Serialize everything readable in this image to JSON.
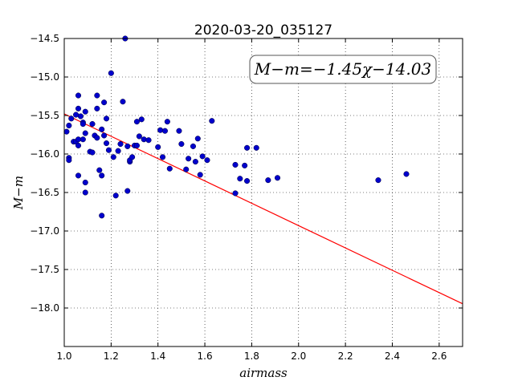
{
  "chart_data": {
    "type": "scatter",
    "title": "2020-03-20_035127",
    "xlabel": "airmass",
    "ylabel": "M−m",
    "xlim": [
      1.0,
      2.7
    ],
    "ylim": [
      -14.5,
      -18.5
    ],
    "y_inverted": true,
    "grid": true,
    "x_ticks": [
      "1.0",
      "1.2",
      "1.4",
      "1.6",
      "1.8",
      "2.0",
      "2.2",
      "2.4",
      "2.6"
    ],
    "y_ticks": [
      "−14.5",
      "−15.0",
      "−15.5",
      "−16.0",
      "−16.5",
      "−17.0",
      "−17.5",
      "−18.0"
    ],
    "annotation": "M−m=−1.45χ−14.03",
    "fit": {
      "slope": -1.45,
      "intercept": -14.03,
      "color": "#ff0000",
      "x_range": [
        1.0,
        2.7
      ]
    },
    "marker_color": "#0000cc",
    "points": [
      [
        1.01,
        -15.71
      ],
      [
        1.02,
        -15.63
      ],
      [
        1.02,
        -16.05
      ],
      [
        1.02,
        -16.08
      ],
      [
        1.03,
        -15.54
      ],
      [
        1.04,
        -15.84
      ],
      [
        1.05,
        -15.49
      ],
      [
        1.05,
        -15.84
      ],
      [
        1.06,
        -15.41
      ],
      [
        1.06,
        -16.28
      ],
      [
        1.06,
        -15.81
      ],
      [
        1.06,
        -15.89
      ],
      [
        1.06,
        -15.24
      ],
      [
        1.07,
        -15.51
      ],
      [
        1.08,
        -15.59
      ],
      [
        1.08,
        -15.81
      ],
      [
        1.08,
        -15.61
      ],
      [
        1.09,
        -16.37
      ],
      [
        1.09,
        -16.5
      ],
      [
        1.09,
        -15.45
      ],
      [
        1.09,
        -15.73
      ],
      [
        1.11,
        -15.97
      ],
      [
        1.12,
        -15.61
      ],
      [
        1.12,
        -15.98
      ],
      [
        1.13,
        -15.76
      ],
      [
        1.14,
        -15.41
      ],
      [
        1.14,
        -15.79
      ],
      [
        1.14,
        -15.24
      ],
      [
        1.15,
        -16.21
      ],
      [
        1.16,
        -16.8
      ],
      [
        1.16,
        -15.68
      ],
      [
        1.17,
        -15.33
      ],
      [
        1.17,
        -15.76
      ],
      [
        1.16,
        -16.28
      ],
      [
        1.18,
        -15.54
      ],
      [
        1.18,
        -15.86
      ],
      [
        1.19,
        -15.95
      ],
      [
        1.2,
        -14.95
      ],
      [
        1.21,
        -16.04
      ],
      [
        1.22,
        -16.54
      ],
      [
        1.23,
        -15.96
      ],
      [
        1.24,
        -15.87
      ],
      [
        1.25,
        -15.32
      ],
      [
        1.26,
        -14.5
      ],
      [
        1.27,
        -15.9
      ],
      [
        1.27,
        -16.48
      ],
      [
        1.28,
        -16.1
      ],
      [
        1.28,
        -16.08
      ],
      [
        1.29,
        -16.04
      ],
      [
        1.3,
        -15.89
      ],
      [
        1.31,
        -15.58
      ],
      [
        1.31,
        -15.89
      ],
      [
        1.32,
        -15.77
      ],
      [
        1.33,
        -15.55
      ],
      [
        1.34,
        -15.81
      ],
      [
        1.36,
        -15.82
      ],
      [
        1.4,
        -15.91
      ],
      [
        1.41,
        -15.69
      ],
      [
        1.42,
        -16.04
      ],
      [
        1.43,
        -15.7
      ],
      [
        1.44,
        -15.58
      ],
      [
        1.45,
        -16.19
      ],
      [
        1.49,
        -15.7
      ],
      [
        1.5,
        -15.87
      ],
      [
        1.52,
        -16.2
      ],
      [
        1.53,
        -16.06
      ],
      [
        1.55,
        -15.9
      ],
      [
        1.56,
        -16.1
      ],
      [
        1.57,
        -15.8
      ],
      [
        1.58,
        -16.27
      ],
      [
        1.59,
        -16.03
      ],
      [
        1.61,
        -16.08
      ],
      [
        1.63,
        -15.57
      ],
      [
        1.73,
        -16.14
      ],
      [
        1.73,
        -16.51
      ],
      [
        1.75,
        -16.32
      ],
      [
        1.77,
        -16.15
      ],
      [
        1.78,
        -16.35
      ],
      [
        1.78,
        -15.92
      ],
      [
        1.82,
        -15.92
      ],
      [
        1.87,
        -16.34
      ],
      [
        1.91,
        -16.31
      ],
      [
        2.34,
        -16.34
      ],
      [
        2.46,
        -16.26
      ]
    ]
  }
}
